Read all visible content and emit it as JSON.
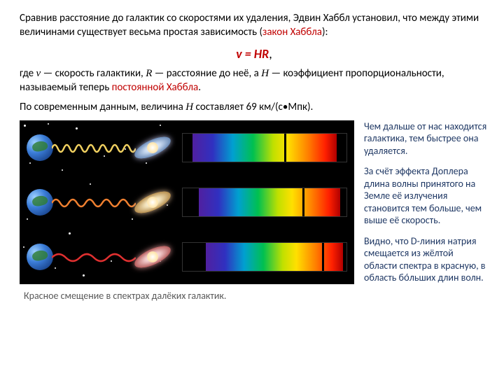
{
  "intro": {
    "p1_before": "Сравнив расстояние до галактик со скоростями их удаления, Эдвин Хаббл  установил, что между этими величинами существует весьма простая зависимость (",
    "p1_law": "закон Хаббла",
    "p1_after": "):",
    "formula_v": "v",
    "formula_eq": " = ",
    "formula_HR": "HR",
    "formula_comma": ",",
    "p2_before": "где ",
    "p2_v": "v",
    "p2_mid1": " — скорость галактики, ",
    "p2_R": "R",
    "p2_mid2": " — расстояние до неё, а ",
    "p2_H": "H",
    "p2_mid3": " — коэффициент пропорциональности, называемый теперь ",
    "p2_const": "постоянной Хаббла",
    "p2_end": ".",
    "p3_before": "По современным данным, величина ",
    "p3_H": "H",
    "p3_after": " составляет 69 км/(с•Мпк)."
  },
  "side": {
    "s1": "Чем дальше от нас находится галактика, тем быстрее она удаляется.",
    "s2": "За счёт эффекта Доплера длина волны принятого на Земле её излучения становится тем больше, чем выше её скорость.",
    "s3": "Видно, что D-линия натрия смещается из жёлтой области спектра в красную, в область бо́льших длин волн."
  },
  "caption": "Красное смещение в спектрах далёких галактик.",
  "figure": {
    "rows": [
      {
        "galaxy_tint": "blue",
        "wave_color": "#f0d060",
        "wave_cycles": 7,
        "spec_left_black_pct": 6,
        "spec_right_black_pct": 6,
        "d_line_pct": 62
      },
      {
        "galaxy_tint": "gold",
        "wave_color": "#f08030",
        "wave_cycles": 5,
        "spec_left_black_pct": 10,
        "spec_right_black_pct": 4,
        "d_line_pct": 73
      },
      {
        "galaxy_tint": "red",
        "wave_color": "#e03030",
        "wave_cycles": 3,
        "spec_left_black_pct": 14,
        "spec_right_black_pct": 2,
        "d_line_pct": 85
      }
    ],
    "stars": [
      [
        6,
        6,
        1.5
      ],
      [
        40,
        4,
        1
      ],
      [
        80,
        10,
        1.5
      ],
      [
        120,
        50,
        1
      ],
      [
        200,
        6,
        1
      ],
      [
        14,
        60,
        1
      ],
      [
        60,
        70,
        1
      ],
      [
        30,
        100,
        1.5
      ],
      [
        100,
        90,
        1
      ],
      [
        160,
        140,
        1
      ],
      [
        10,
        140,
        1
      ],
      [
        70,
        160,
        1.5
      ],
      [
        130,
        200,
        1
      ],
      [
        200,
        200,
        1
      ],
      [
        180,
        60,
        1
      ],
      [
        210,
        120,
        1
      ],
      [
        50,
        210,
        1
      ],
      [
        90,
        220,
        1.5
      ],
      [
        150,
        40,
        1
      ],
      [
        5,
        180,
        1
      ]
    ]
  }
}
